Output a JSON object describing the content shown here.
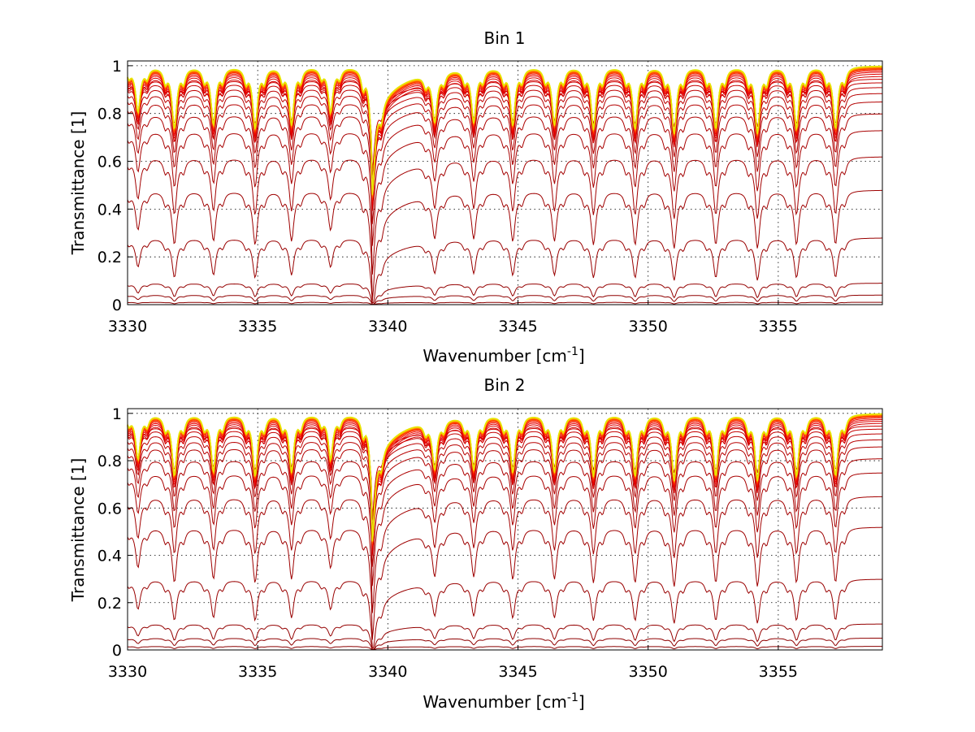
{
  "chart_data": [
    {
      "type": "line",
      "title": "Bin 1",
      "xlabel": "Wavenumber [cm",
      "xlabel_sup": "-1",
      "xlabel_end": "]",
      "ylabel": "Transmittance [1]",
      "xlim": [
        3330,
        3359
      ],
      "ylim": [
        0,
        1.02
      ],
      "xticks": [
        3330,
        3335,
        3340,
        3345,
        3350,
        3355
      ],
      "xtick_labels": [
        "3330",
        "3335",
        "3340",
        "3345",
        "3350",
        "3355"
      ],
      "yticks": [
        0,
        0.2,
        0.4,
        0.6,
        0.8,
        1
      ],
      "ytick_labels": [
        "0",
        "0.2",
        "0.4",
        "0.6",
        "0.8",
        "1"
      ],
      "grid": true,
      "line_centers": [
        3330.4,
        3331.8,
        3333.3,
        3334.9,
        3336.3,
        3337.8,
        3339.4,
        3341.8,
        3343.3,
        3344.8,
        3346.4,
        3347.9,
        3349.5,
        3351.0,
        3352.6,
        3354.2,
        3355.7,
        3357.2
      ],
      "line_strengths": [
        0.55,
        0.75,
        0.7,
        0.75,
        0.7,
        0.55,
        1.0,
        0.6,
        0.65,
        0.7,
        0.7,
        0.75,
        0.75,
        0.8,
        0.75,
        0.8,
        0.75,
        0.75
      ],
      "strong_line": 3339.4,
      "series_count": 26,
      "series_continuum": [
        0.0,
        0.01,
        0.04,
        0.09,
        0.28,
        0.48,
        0.62,
        0.73,
        0.8,
        0.85,
        0.885,
        0.91,
        0.93,
        0.945,
        0.957,
        0.967,
        0.975,
        0.981,
        0.986,
        0.99,
        0.993,
        0.995,
        0.997,
        0.998,
        0.999,
        1.0
      ],
      "series_colors": [
        "#7f0000",
        "#8b0000",
        "#8f0000",
        "#940000",
        "#990000",
        "#9e0000",
        "#a30000",
        "#a80000",
        "#ad0000",
        "#b30000",
        "#b80000",
        "#bd0000",
        "#c40000",
        "#cc0000",
        "#d40000",
        "#dd0000",
        "#e60000",
        "#ef1000",
        "#f82800",
        "#ff4000",
        "#ff5a00",
        "#ff7400",
        "#ff8e00",
        "#ffa800",
        "#ffc800",
        "#e6e600"
      ]
    },
    {
      "type": "line",
      "title": "Bin 2",
      "xlabel": "Wavenumber [cm",
      "xlabel_sup": "-1",
      "xlabel_end": "]",
      "ylabel": "Transmittance [1]",
      "xlim": [
        3330,
        3359
      ],
      "ylim": [
        0,
        1.02
      ],
      "xticks": [
        3330,
        3335,
        3340,
        3345,
        3350,
        3355
      ],
      "xtick_labels": [
        "3330",
        "3335",
        "3340",
        "3345",
        "3350",
        "3355"
      ],
      "yticks": [
        0,
        0.2,
        0.4,
        0.6,
        0.8,
        1
      ],
      "ytick_labels": [
        "0",
        "0.2",
        "0.4",
        "0.6",
        "0.8",
        "1"
      ],
      "grid": true,
      "line_centers": [
        3330.4,
        3331.8,
        3333.3,
        3334.9,
        3336.3,
        3337.8,
        3339.4,
        3341.8,
        3343.3,
        3344.8,
        3346.4,
        3347.9,
        3349.5,
        3351.0,
        3352.6,
        3354.2,
        3355.7,
        3357.2
      ],
      "line_strengths": [
        0.55,
        0.75,
        0.7,
        0.75,
        0.7,
        0.55,
        1.0,
        0.6,
        0.65,
        0.7,
        0.7,
        0.75,
        0.75,
        0.8,
        0.75,
        0.8,
        0.75,
        0.75
      ],
      "strong_line": 3339.4,
      "series_count": 26,
      "series_continuum": [
        0.0,
        0.015,
        0.05,
        0.11,
        0.3,
        0.52,
        0.65,
        0.75,
        0.81,
        0.86,
        0.89,
        0.915,
        0.935,
        0.948,
        0.96,
        0.969,
        0.976,
        0.982,
        0.987,
        0.991,
        0.994,
        0.996,
        0.997,
        0.998,
        0.999,
        1.0
      ],
      "series_colors": [
        "#7f0000",
        "#8b0000",
        "#8f0000",
        "#940000",
        "#990000",
        "#9e0000",
        "#a30000",
        "#a80000",
        "#ad0000",
        "#b30000",
        "#b80000",
        "#bd0000",
        "#c40000",
        "#cc0000",
        "#d40000",
        "#dd0000",
        "#e60000",
        "#ef1000",
        "#f82800",
        "#ff4000",
        "#ff5a00",
        "#ff7400",
        "#ff8e00",
        "#ffa800",
        "#ffc800",
        "#e6e600"
      ]
    }
  ]
}
